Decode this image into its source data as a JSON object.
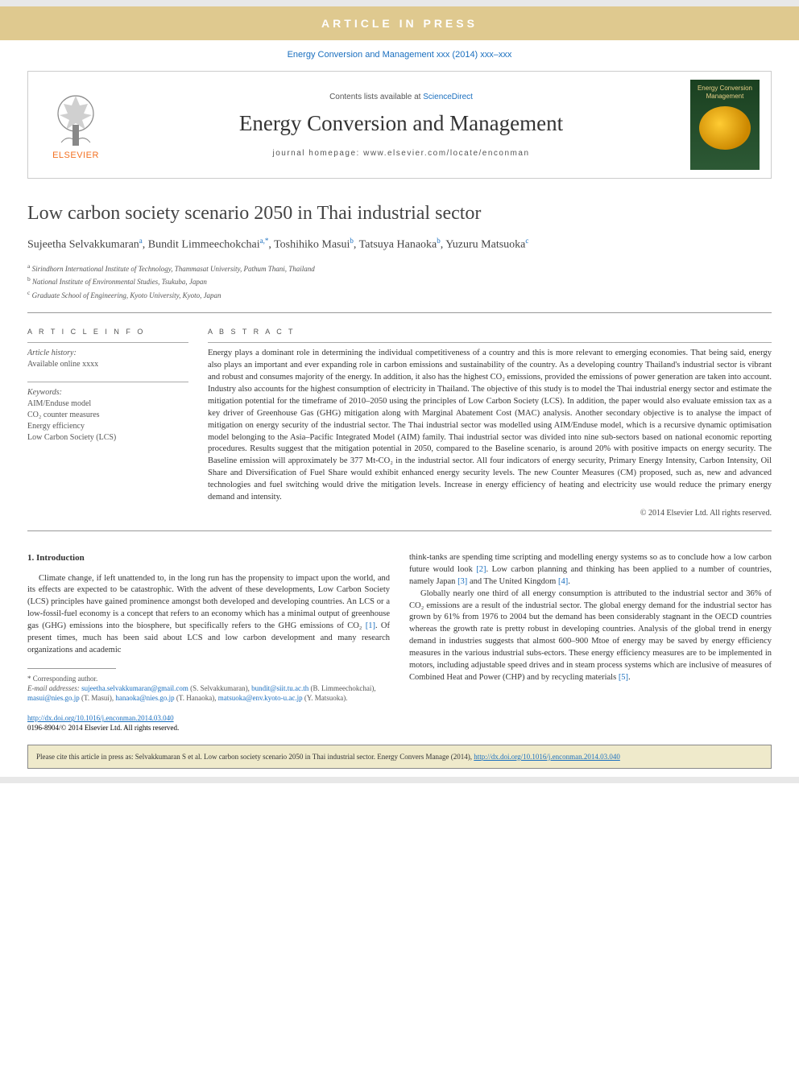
{
  "banner": {
    "aip": "ARTICLE IN PRESS",
    "journal_ref": "Energy Conversion and Management xxx (2014) xxx–xxx"
  },
  "header": {
    "elsevier": "ELSEVIER",
    "contents_prefix": "Contents lists available at ",
    "contents_link": "ScienceDirect",
    "journal_name": "Energy Conversion and Management",
    "homepage_prefix": "journal homepage: ",
    "homepage_url": "www.elsevier.com/locate/enconman",
    "cover_title": "Energy Conversion Management"
  },
  "title": "Low carbon society scenario 2050 in Thai industrial sector",
  "authors_html": "Sujeetha Selvakkumaran<sup>a</sup>, Bundit Limmeechokchai<sup>a,*</sup>, Toshihiko Masui<sup>b</sup>, Tatsuya Hanaoka<sup>b</sup>, Yuzuru Matsuoka<sup>c</sup>",
  "affiliations": {
    "a": "Sirindhorn International Institute of Technology, Thammasat University, Pathum Thani, Thailand",
    "b": "National Institute of Environmental Studies, Tsukuba, Japan",
    "c": "Graduate School of Engineering, Kyoto University, Kyoto, Japan"
  },
  "article_info": {
    "header": "A R T I C L E   I N F O",
    "history_label": "Article history:",
    "history_value": "Available online xxxx",
    "keywords_label": "Keywords:",
    "keywords": [
      "AIM/Enduse model",
      "CO₂ counter measures",
      "Energy efficiency",
      "Low Carbon Society (LCS)"
    ]
  },
  "abstract": {
    "header": "A B S T R A C T",
    "text": "Energy plays a dominant role in determining the individual competitiveness of a country and this is more relevant to emerging economies. That being said, energy also plays an important and ever expanding role in carbon emissions and sustainability of the country. As a developing country Thailand's industrial sector is vibrant and robust and consumes majority of the energy. In addition, it also has the highest CO₂ emissions, provided the emissions of power generation are taken into account. Industry also accounts for the highest consumption of electricity in Thailand. The objective of this study is to model the Thai industrial energy sector and estimate the mitigation potential for the timeframe of 2010–2050 using the principles of Low Carbon Society (LCS). In addition, the paper would also evaluate emission tax as a key driver of Greenhouse Gas (GHG) mitigation along with Marginal Abatement Cost (MAC) analysis. Another secondary objective is to analyse the impact of mitigation on energy security of the industrial sector. The Thai industrial sector was modelled using AIM/Enduse model, which is a recursive dynamic optimisation model belonging to the Asia–Pacific Integrated Model (AIM) family. Thai industrial sector was divided into nine sub-sectors based on national economic reporting procedures. Results suggest that the mitigation potential in 2050, compared to the Baseline scenario, is around 20% with positive impacts on energy security. The Baseline emission will approximately be 377 Mt-CO₂ in the industrial sector. All four indicators of energy security, Primary Energy Intensity, Carbon Intensity, Oil Share and Diversification of Fuel Share would exhibit enhanced energy security levels. The new Counter Measures (CM) proposed, such as, new and advanced technologies and fuel switching would drive the mitigation levels. Increase in energy efficiency of heating and electricity use would reduce the primary energy demand and intensity.",
    "copyright": "© 2014 Elsevier Ltd. All rights reserved."
  },
  "body": {
    "intro_heading": "1. Introduction",
    "col1_p1": "Climate change, if left unattended to, in the long run has the propensity to impact upon the world, and its effects are expected to be catastrophic. With the advent of these developments, Low Carbon Society (LCS) principles have gained prominence amongst both developed and developing countries. An LCS or a low-fossil-fuel economy is a concept that refers to an economy which has a minimal output of greenhouse gas (GHG) emissions into the biosphere, but specifically refers to the GHG emissions of CO₂ ",
    "ref1": "[1]",
    "col1_p1_tail": ". Of present times, much has been said about LCS and low carbon development and many research organizations and academic",
    "col2_p1": "think-tanks are spending time scripting and modelling energy systems so as to conclude how a low carbon future would look ",
    "ref2": "[2]",
    "col2_p1_mid": ". Low carbon planning and thinking has been applied to a number of countries, namely Japan ",
    "ref3": "[3]",
    "col2_p1_mid2": " and The United Kingdom ",
    "ref4": "[4]",
    "col2_p1_tail": ".",
    "col2_p2": "Globally nearly one third of all energy consumption is attributed to the industrial sector and 36% of CO₂ emissions are a result of the industrial sector. The global energy demand for the industrial sector has grown by 61% from 1976 to 2004 but the demand has been considerably stagnant in the OECD countries whereas the growth rate is pretty robust in developing countries. Analysis of the global trend in energy demand in industries suggests that almost 600–900 Mtoe of energy may be saved by energy efficiency measures in the various industrial subs-ectors. These energy efficiency measures are to be implemented in motors, including adjustable speed drives and in steam process systems which are inclusive of measures of Combined Heat and Power (CHP) and by recycling materials ",
    "ref5": "[5]",
    "col2_p2_tail": "."
  },
  "footnotes": {
    "corresponding": "* Corresponding author.",
    "email_label": "E-mail addresses: ",
    "emails": [
      {
        "addr": "sujeetha.selvakkumaran@gmail.com",
        "name": " (S. Selvakkumaran), "
      },
      {
        "addr": "bundit@siit.tu.ac.th",
        "name": " (B. Limmeechokchai), "
      },
      {
        "addr": "masui@nies.go.jp",
        "name": " (T. Masui), "
      },
      {
        "addr": "hanaoka@nies.go.jp",
        "name": " (T. Hanaoka), "
      },
      {
        "addr": "matsuoka@env.kyoto-u.ac.jp",
        "name": " (Y. Matsuoka)."
      }
    ]
  },
  "doi": {
    "link": "http://dx.doi.org/10.1016/j.enconman.2014.03.040",
    "issn_line": "0196-8904/© 2014 Elsevier Ltd. All rights reserved."
  },
  "cite_box": {
    "text": "Please cite this article in press as: Selvakkumaran S et al. Low carbon society scenario 2050 in Thai industrial sector. Energy Convers Manage (2014), ",
    "link": "http://dx.doi.org/10.1016/j.enconman.2014.03.040"
  },
  "colors": {
    "banner_bg": "#dfc98f",
    "link": "#1a6fbf",
    "elsevier_orange": "#f37021",
    "cite_bg": "#efeacb",
    "cover_green": "#2d5935"
  }
}
